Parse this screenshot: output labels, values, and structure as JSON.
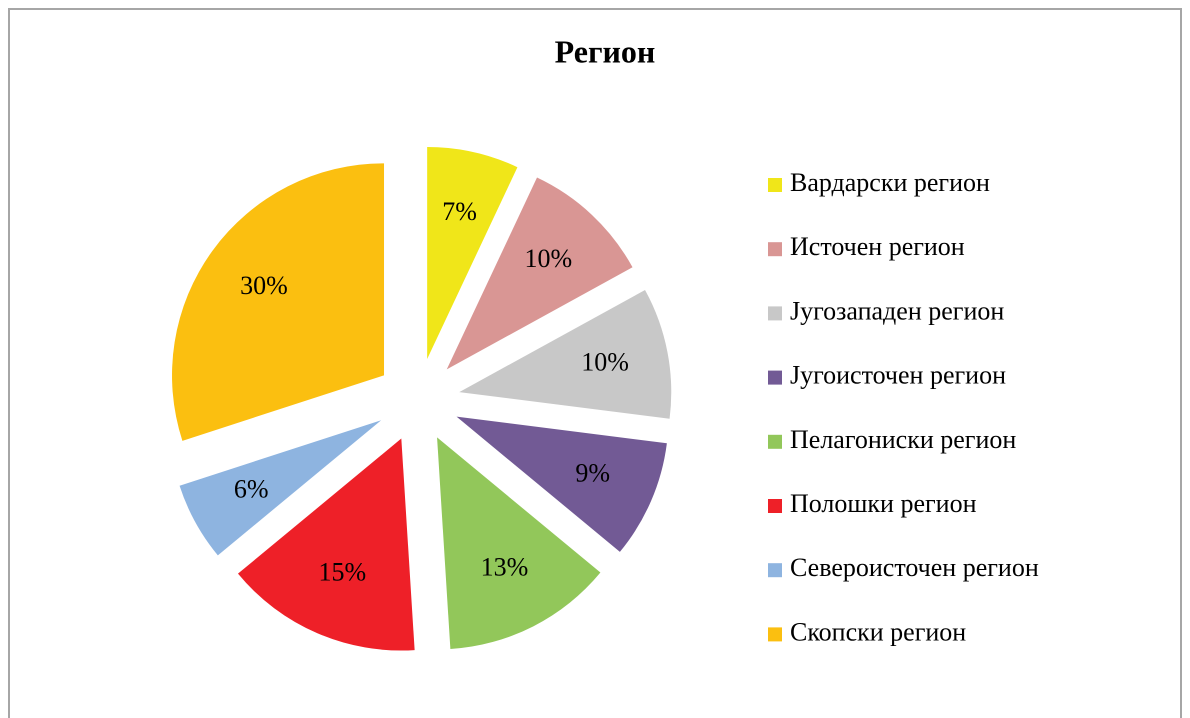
{
  "chart_data": {
    "type": "pie",
    "title": "Регион",
    "categories": [
      "Вардарски регион",
      "Источен регион",
      "Југозападен регион",
      "Југоисточен регион",
      "Пелагониски регион",
      "Полошки регион",
      "Североисточен регион",
      "Скопски регион"
    ],
    "values": [
      7,
      10,
      10,
      9,
      13,
      15,
      6,
      30
    ],
    "value_labels": [
      "7%",
      "10%",
      "10%",
      "9%",
      "13%",
      "15%",
      "6%",
      "30%"
    ],
    "colors": [
      "#f0e619",
      "#d99694",
      "#c8c8c8",
      "#725a95",
      "#92c75a",
      "#ee2028",
      "#8eb4e0",
      "#fbbf10"
    ],
    "legend": "right"
  }
}
